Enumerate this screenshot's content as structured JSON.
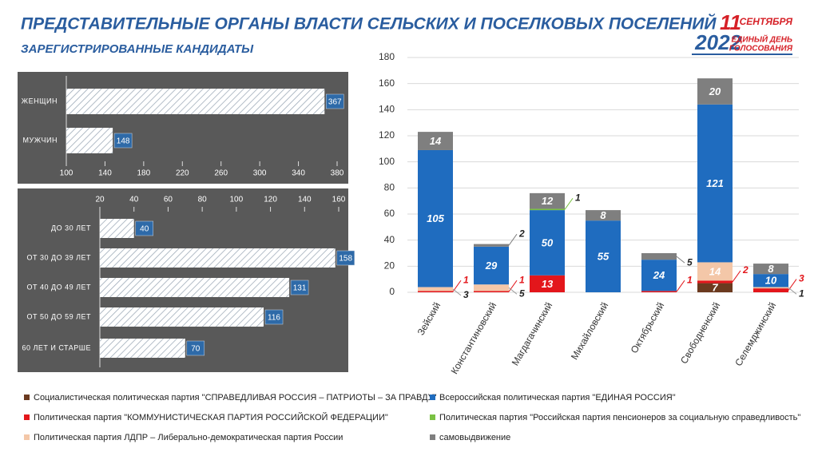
{
  "header": {
    "title": "ПРЕДСТАВИТЕЛЬНЫЕ ОРГАНЫ ВЛАСТИ СЕЛЬСКИХ И ПОСЕЛКОВЫХ ПОСЕЛЕНИЙ",
    "subtitle": "ЗАРЕГИСТРИРОВАННЫЕ КАНДИДАТЫ",
    "logo_day": "11",
    "logo_month": "СЕНТЯБРЯ",
    "logo_year": "2022",
    "logo_line1": "ЕДИНЫЙ ДЕНЬ",
    "logo_line2": "ГОЛОСОВАНИЯ"
  },
  "chart_data": [
    {
      "type": "bar",
      "orientation": "horizontal",
      "categories": [
        "ЖЕНЩИН",
        "МУЖЧИН"
      ],
      "values": [
        367,
        148
      ],
      "xlim": [
        100,
        380
      ],
      "xticks": [
        100,
        140,
        180,
        220,
        260,
        300,
        340,
        380
      ],
      "axis_position": "bottom"
    },
    {
      "type": "bar",
      "orientation": "horizontal",
      "categories": [
        "ДО 30 ЛЕТ",
        "ОТ 30 ДО 39 ЛЕТ",
        "ОТ 40 ДО 49 ЛЕТ",
        "ОТ 50 ДО 59 ЛЕТ",
        "60 ЛЕТ И СТАРШЕ"
      ],
      "values": [
        40,
        158,
        131,
        116,
        70
      ],
      "xlim": [
        20,
        160
      ],
      "xticks": [
        20,
        40,
        60,
        80,
        100,
        120,
        140,
        160
      ],
      "axis_position": "top"
    },
    {
      "type": "stacked_bar",
      "categories": [
        "Зейский",
        "Константиновский",
        "Магдагачинский",
        "Михайловский",
        "Октябрьский",
        "Свободненский",
        "Селемджинский"
      ],
      "ylim": [
        0,
        180
      ],
      "yticks": [
        0,
        20,
        40,
        60,
        80,
        100,
        120,
        140,
        160,
        180
      ],
      "grid": true,
      "series": [
        {
          "name": "Социалистическая политическая партия \"СПРАВЕДЛИВАЯ РОССИЯ – ПАТРИОТЫ – ЗА ПРАВДУ\"",
          "color": "#6b3a1f",
          "values": [
            null,
            null,
            null,
            null,
            null,
            7,
            null
          ]
        },
        {
          "name": "Политическая партия \"КОММУНИСТИЧЕСКАЯ ПАРТИЯ РОССИЙСКОЙ ФЕДЕРАЦИИ\"",
          "color": "#e3161b",
          "values": [
            1,
            1,
            13,
            null,
            1,
            2,
            3
          ]
        },
        {
          "name": "Политическая партия ЛДПР – Либерально-демократическая партия России",
          "color": "#f4c7a8",
          "values": [
            3,
            5,
            null,
            null,
            null,
            14,
            1
          ]
        },
        {
          "name": "Всероссийская политическая партия \"ЕДИНАЯ РОССИЯ\"",
          "color": "#1f6cbf",
          "values": [
            105,
            29,
            50,
            55,
            24,
            121,
            10
          ]
        },
        {
          "name": "Политическая партия \"Российская партия пенсионеров за социальную справедливость\"",
          "color": "#7ac143",
          "values": [
            null,
            null,
            1,
            null,
            null,
            null,
            null
          ]
        },
        {
          "name": "самовыдвижение",
          "color": "#7f7f7f",
          "values": [
            14,
            2,
            12,
            8,
            5,
            20,
            8
          ]
        }
      ]
    }
  ]
}
